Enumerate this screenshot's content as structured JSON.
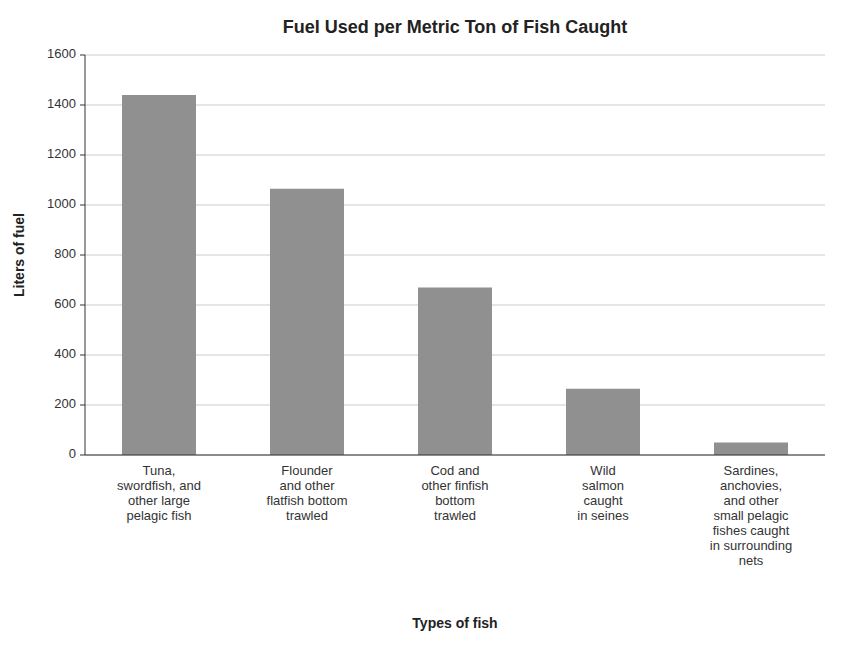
{
  "chart_data": {
    "type": "bar",
    "title": "Fuel Used per Metric Ton of Fish Caught",
    "xlabel": "Types of fish",
    "ylabel": "Liters of fuel",
    "categories": [
      "Tuna,\nswordfish, and\nother large\npelagic fish",
      "Flounder\nand other\nflatfish bottom\ntrawled",
      "Cod and\nother finfish\nbottom\ntrawled",
      "Wild\nsalmon\ncaught\nin seines",
      "Sardines,\nanchovies,\nand other\nsmall pelagic\nfishes caught\nin surrounding\nnets"
    ],
    "values": [
      1440,
      1065,
      670,
      265,
      50
    ],
    "color": "#909090",
    "ylim": [
      0,
      1600
    ],
    "yticks": [
      0,
      200,
      400,
      600,
      800,
      1000,
      1200,
      1400,
      1600
    ],
    "grid": true
  }
}
